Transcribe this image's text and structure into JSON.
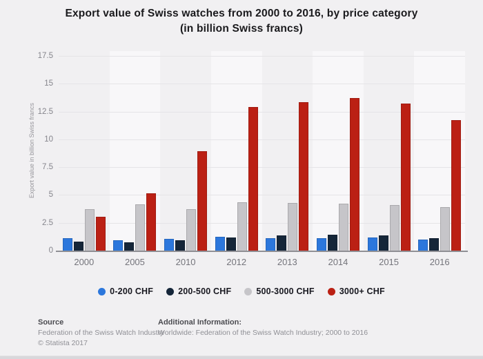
{
  "title": {
    "line1": "Export value of Swiss watches from 2000 to 2016, by price category",
    "line2": "(in billion Swiss francs)"
  },
  "chart_data": {
    "type": "bar",
    "title": "Export value of Swiss watches from 2000 to 2016, by price category (in billion Swiss francs)",
    "categories": [
      "2000",
      "2005",
      "2010",
      "2012",
      "2013",
      "2014",
      "2015",
      "2016"
    ],
    "series": [
      {
        "name": "0-200 CHF",
        "color": "#2c77dc",
        "values": [
          1.2,
          1.0,
          1.1,
          1.3,
          1.2,
          1.2,
          1.25,
          1.05
        ]
      },
      {
        "name": "200-500 CHF",
        "color": "#152639",
        "values": [
          0.9,
          0.8,
          1.0,
          1.25,
          1.45,
          1.5,
          1.4,
          1.2
        ]
      },
      {
        "name": "500-3000 CHF",
        "color": "#c6c5c9",
        "values": [
          3.8,
          4.2,
          3.8,
          4.4,
          4.35,
          4.3,
          4.15,
          3.95
        ]
      },
      {
        "name": "3000+ CHF",
        "color": "#bb2014",
        "values": [
          3.1,
          5.2,
          9.0,
          13.0,
          13.4,
          13.8,
          13.3,
          11.8
        ]
      }
    ],
    "xlabel": "",
    "ylabel": "Export value in billion Swiss francs",
    "ylim": [
      0,
      17.5
    ],
    "yticks": [
      0,
      2.5,
      5,
      7.5,
      10,
      12.5,
      15,
      17.5
    ],
    "grid": true,
    "legend_position": "bottom",
    "band_color": "#f8f7f9",
    "gridline_color": "#e5e4e7",
    "baseline_color": "#8f8f94"
  },
  "footer": {
    "source_label": "Source",
    "source_text": "Federation of the Swiss Watch Industry",
    "copyright": "© Statista 2017",
    "additional_label": "Additional Information:",
    "additional_text": "Worldwide: Federation of the Swiss Watch Industry; 2000 to 2016"
  }
}
